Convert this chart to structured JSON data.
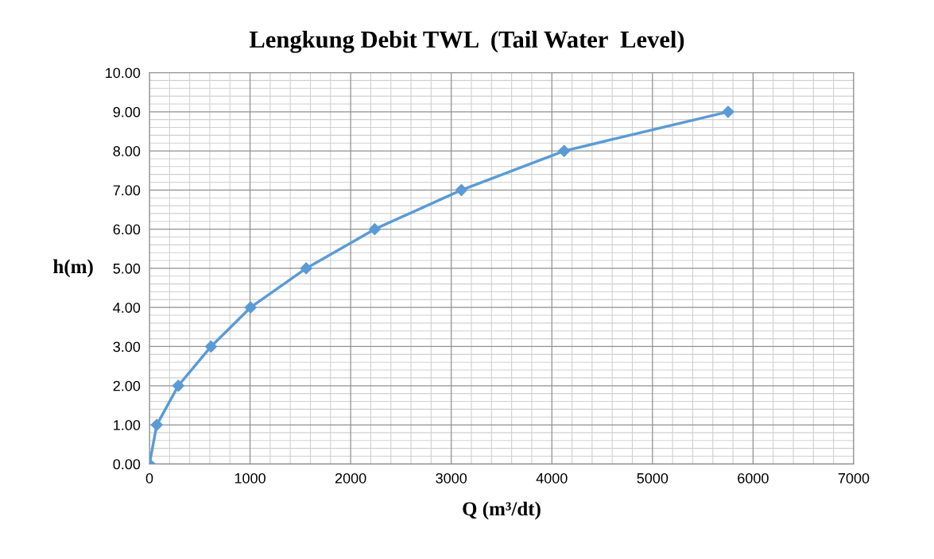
{
  "chart_data": {
    "type": "line",
    "title": "Lengkung Debit TWL  (Tail Water  Level)",
    "xlabel": "Q (m³/dt)",
    "ylabel": "h(m)",
    "x": [
      0,
      73,
      287,
      612,
      1005,
      1558,
      2239,
      3101,
      4122,
      5752
    ],
    "series": [
      {
        "color": "#5b9bd5",
        "values": [
          0,
          1,
          2,
          3,
          4,
          5,
          6,
          7,
          8,
          9
        ]
      }
    ],
    "xlim": [
      0,
      7000
    ],
    "xticks": [
      0,
      1000,
      2000,
      3000,
      4000,
      5000,
      6000,
      7000
    ],
    "ylim": [
      0,
      10
    ],
    "yticks": [
      {
        "value": 0,
        "label": "0.00"
      },
      {
        "value": 1,
        "label": "1.00"
      },
      {
        "value": 2,
        "label": "2.00"
      },
      {
        "value": 3,
        "label": "3.00"
      },
      {
        "value": 4,
        "label": "4.00"
      },
      {
        "value": 5,
        "label": "5.00"
      },
      {
        "value": 6,
        "label": "6.00"
      },
      {
        "value": 7,
        "label": "7.00"
      },
      {
        "value": 8,
        "label": "8.00"
      },
      {
        "value": 9,
        "label": "9.00"
      },
      {
        "value": 10,
        "label": "10.00"
      }
    ],
    "grid": true,
    "marker": "diamond",
    "line_style": "solid",
    "legend": false
  }
}
